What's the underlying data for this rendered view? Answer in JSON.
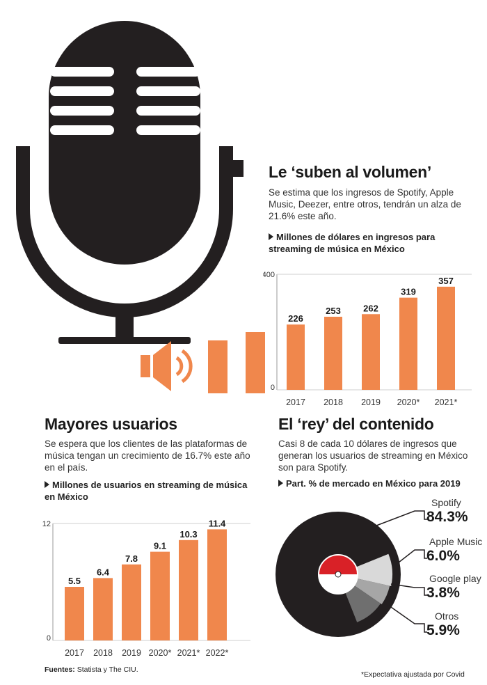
{
  "colors": {
    "bar": "#f0874c",
    "dark": "#231f20",
    "accent_red": "#d92127",
    "grey_light": "#d9d9d9",
    "grey_mid": "#a6a6a6",
    "grey_dark": "#6f6f6f"
  },
  "icons": [
    "microphone-icon",
    "speaker-icon",
    "bullet-arrow-icon",
    "vinyl-record-icon"
  ],
  "section1": {
    "title": "Le ‘suben al volumen’",
    "description": "Se estima que los ingresos de Spotify, Apple Music, Deezer, entre otros, tendrán un alza de 21.6% este año.",
    "subtitle": "Millones de dólares en ingresos para streaming de música en México"
  },
  "section2": {
    "title": "Mayores usuarios",
    "description": "Se espera que los clientes de las plataformas de música tengan un crecimiento de 16.7% este año en el país.",
    "subtitle": "Millones de usuarios en streaming de música en México"
  },
  "section3": {
    "title": "El ‘rey’ del contenido",
    "description": "Casi 8 de cada 10 dólares de ingresos que generan los usuarios de streaming en México son para Spotify.",
    "subtitle": "Part. % de mercado en México para 2019"
  },
  "chart_data": [
    {
      "type": "bar",
      "title": "Millones de dólares en ingresos para streaming de música en México",
      "categories": [
        "2017",
        "2018",
        "2019",
        "2020*",
        "2021*"
      ],
      "values": [
        226,
        253,
        262,
        319,
        357
      ],
      "data_labels": [
        "226",
        "253",
        "262",
        "319",
        "357"
      ],
      "ylim": [
        0,
        400
      ],
      "y_ticks": [
        "0",
        "400"
      ]
    },
    {
      "type": "bar",
      "title": "Millones de usuarios en streaming de música en México",
      "categories": [
        "2017",
        "2018",
        "2019",
        "2020*",
        "2021*",
        "2022*"
      ],
      "values": [
        5.5,
        6.4,
        7.8,
        9.1,
        10.3,
        11.4
      ],
      "data_labels": [
        "5.5",
        "6.4",
        "7.8",
        "9.1",
        "10.3",
        "11.4"
      ],
      "ylim": [
        0,
        12
      ],
      "y_ticks": [
        "0",
        "12"
      ]
    },
    {
      "type": "pie",
      "title": "Part. % de mercado en México para 2019",
      "labels": [
        "Spotify",
        "Apple Music",
        "Google play",
        "Otros"
      ],
      "values": [
        84.3,
        6.0,
        3.8,
        5.9
      ],
      "value_labels": [
        "84.3%",
        "6.0%",
        "3.8%",
        "5.9%"
      ]
    }
  ],
  "footer": {
    "sources_label": "Fuentes:",
    "sources_text": "Statista y The CIU.",
    "note": "*Expectativa ajustada por Covid"
  }
}
